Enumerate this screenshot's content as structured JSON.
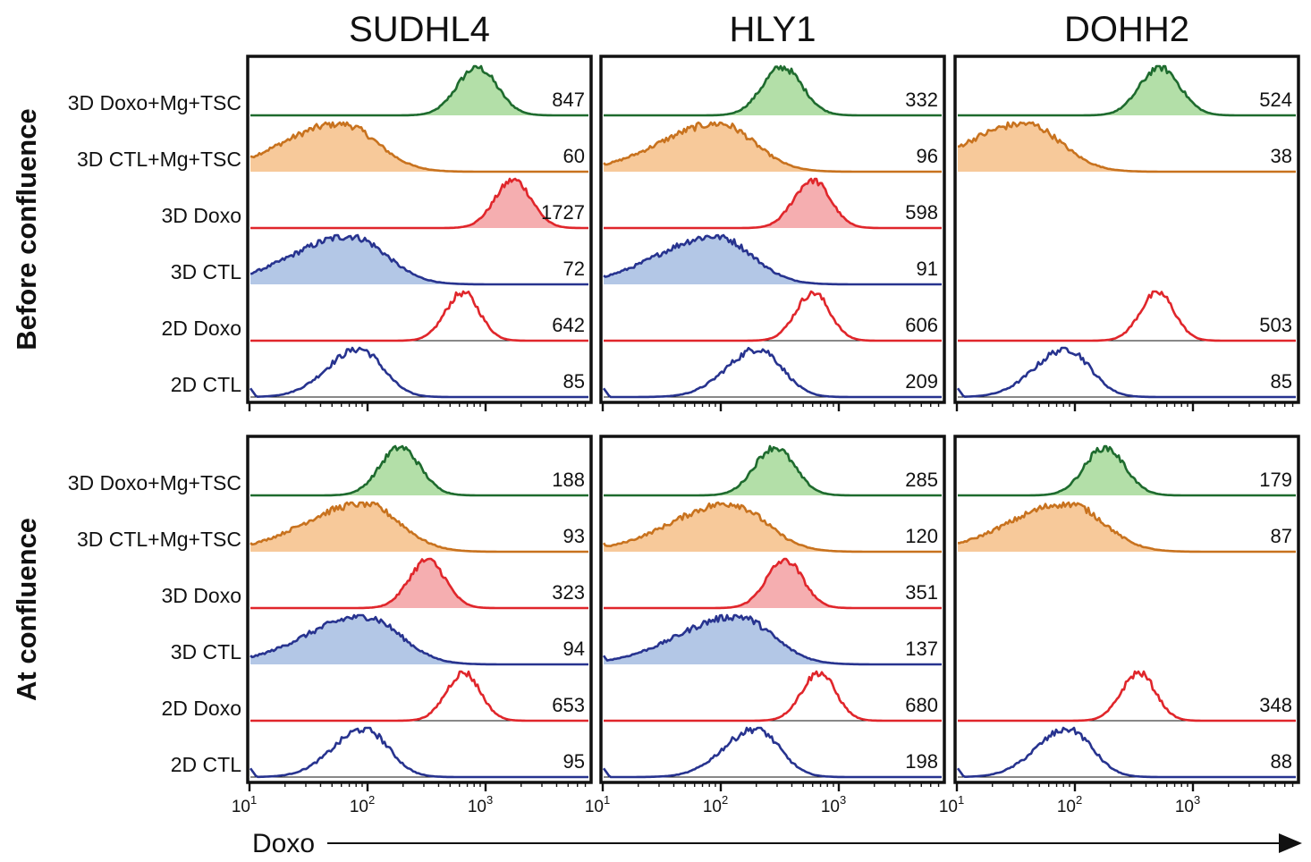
{
  "chart_data": {
    "type": "histogram-grid",
    "title": "",
    "xlabel": "Doxo",
    "x_scale": "log10",
    "xlim": [
      10,
      7000
    ],
    "x_ticks": [
      {
        "value": 10,
        "base": "10",
        "exp": "1"
      },
      {
        "value": 100,
        "base": "10",
        "exp": "2"
      },
      {
        "value": 1000,
        "base": "10",
        "exp": "3"
      }
    ],
    "columns": [
      "SUDHL4",
      "HLY1",
      "DOHH2"
    ],
    "rows": [
      "Before confluence",
      "At confluence"
    ],
    "conditions": [
      "3D Doxo+Mg+TSC",
      "3D CTL+Mg+TSC",
      "3D Doxo",
      "3D CTL",
      "2D Doxo",
      "2D CTL"
    ],
    "series_style": {
      "3D Doxo+Mg+TSC": {
        "stroke": "#1e6b2e",
        "fill": "#b3dfa8"
      },
      "3D CTL+Mg+TSC": {
        "stroke": "#c8721e",
        "fill": "#f7c99a"
      },
      "3D Doxo": {
        "stroke": "#e0262b",
        "fill": "#f5aeb0"
      },
      "3D CTL": {
        "stroke": "#27338f",
        "fill": "#b3c7e6"
      },
      "2D Doxo": {
        "stroke": "#e0262b",
        "fill": "none"
      },
      "2D CTL": {
        "stroke": "#27338f",
        "fill": "none"
      }
    },
    "panels": [
      {
        "row": "Before confluence",
        "column": "SUDHL4",
        "mfi": {
          "3D Doxo+Mg+TSC": "847",
          "3D CTL+Mg+TSC": "60",
          "3D Doxo": "1727",
          "3D CTL": "72",
          "2D Doxo": "642",
          "2D CTL": "85"
        }
      },
      {
        "row": "Before confluence",
        "column": "HLY1",
        "mfi": {
          "3D Doxo+Mg+TSC": "332",
          "3D CTL+Mg+TSC": "96",
          "3D Doxo": "598",
          "3D CTL": "91",
          "2D Doxo": "606",
          "2D CTL": "209"
        }
      },
      {
        "row": "Before confluence",
        "column": "DOHH2",
        "mfi": {
          "3D Doxo+Mg+TSC": "524",
          "3D CTL+Mg+TSC": "38",
          "2D Doxo": "503",
          "2D CTL": "85"
        }
      },
      {
        "row": "At confluence",
        "column": "SUDHL4",
        "mfi": {
          "3D Doxo+Mg+TSC": "188",
          "3D CTL+Mg+TSC": "93",
          "3D Doxo": "323",
          "3D CTL": "94",
          "2D Doxo": "653",
          "2D CTL": "95"
        }
      },
      {
        "row": "At confluence",
        "column": "HLY1",
        "mfi": {
          "3D Doxo+Mg+TSC": "285",
          "3D CTL+Mg+TSC": "120",
          "3D Doxo": "351",
          "3D CTL": "137",
          "2D Doxo": "680",
          "2D CTL": "198"
        }
      },
      {
        "row": "At confluence",
        "column": "DOHH2",
        "mfi": {
          "3D Doxo+Mg+TSC": "179",
          "3D CTL+Mg+TSC": "87",
          "2D Doxo": "348",
          "2D CTL": "88"
        }
      }
    ]
  }
}
